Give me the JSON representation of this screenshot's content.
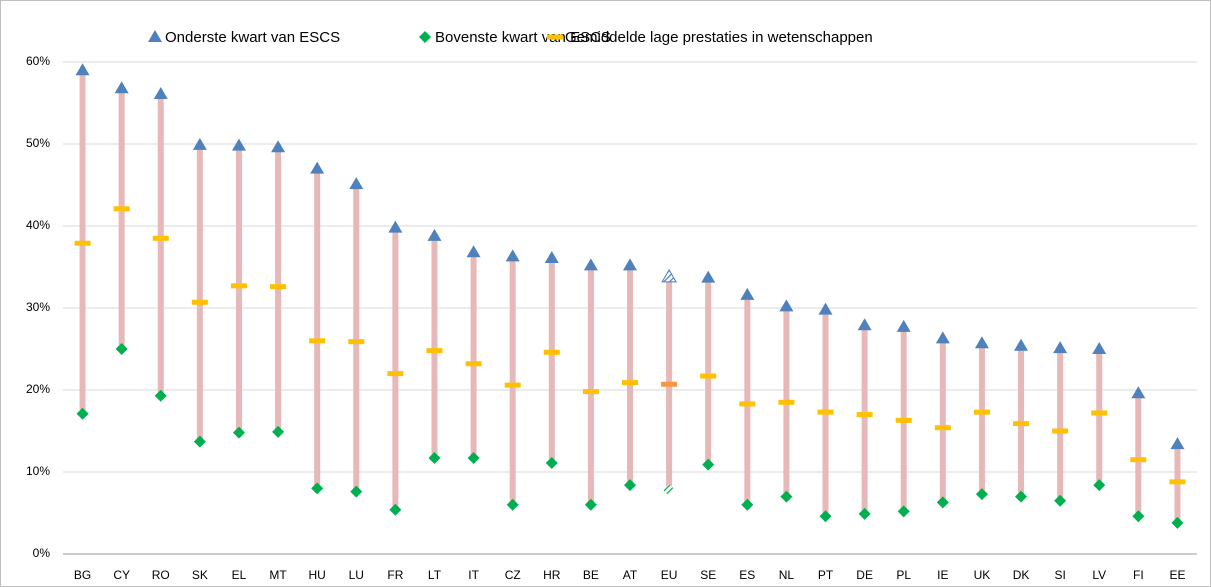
{
  "chart_data": {
    "type": "range",
    "categories": [
      "BG",
      "CY",
      "RO",
      "SK",
      "EL",
      "MT",
      "HU",
      "LU",
      "FR",
      "LT",
      "IT",
      "CZ",
      "HR",
      "BE",
      "AT",
      "EU",
      "SE",
      "ES",
      "NL",
      "PT",
      "DE",
      "PL",
      "IE",
      "UK",
      "DK",
      "SI",
      "LV",
      "FI",
      "EE"
    ],
    "series": [
      {
        "name": "Onderste kwart van ESCS",
        "color": "#4f81bd",
        "marker": "triangle",
        "values": [
          59.0,
          56.8,
          56.1,
          49.9,
          49.8,
          49.6,
          47.0,
          45.1,
          39.8,
          38.8,
          36.8,
          36.3,
          36.1,
          35.2,
          35.2,
          33.8,
          33.7,
          31.6,
          30.2,
          29.8,
          27.9,
          27.7,
          26.3,
          25.7,
          25.4,
          25.1,
          25.0,
          19.6,
          13.4
        ]
      },
      {
        "name": "Bovenste kwart van ESCS",
        "color": "#00b050",
        "marker": "diamond",
        "values": [
          17.1,
          25.0,
          19.3,
          13.7,
          14.8,
          14.9,
          8.0,
          7.6,
          5.4,
          11.7,
          11.7,
          6.0,
          11.1,
          6.0,
          8.4,
          7.8,
          10.9,
          6.0,
          7.0,
          4.6,
          4.9,
          5.2,
          6.3,
          7.3,
          7.0,
          6.5,
          8.4,
          4.6,
          3.8
        ]
      },
      {
        "name": "Gemiddelde lage prestaties in wetenschappen",
        "color": "#ffc000",
        "marker": "dash",
        "values": [
          37.9,
          42.1,
          38.5,
          30.7,
          32.7,
          32.6,
          26.0,
          25.9,
          22.0,
          24.8,
          23.2,
          20.6,
          24.6,
          19.8,
          20.9,
          20.7,
          21.7,
          18.3,
          18.5,
          17.3,
          17.0,
          16.3,
          15.4,
          17.3,
          15.9,
          15.0,
          17.2,
          11.5,
          8.8
        ]
      }
    ],
    "range_color": "#e6b8b7",
    "highlight_categories": [
      "EU"
    ],
    "highlight_color": "#f79646",
    "ylim": [
      0,
      60
    ],
    "yticks": [
      {
        "value": 0,
        "label": "0%"
      },
      {
        "value": 10,
        "label": "10%"
      },
      {
        "value": 20,
        "label": "20%"
      },
      {
        "value": 30,
        "label": "30%"
      },
      {
        "value": 40,
        "label": "40%"
      },
      {
        "value": 50,
        "label": "50%"
      },
      {
        "value": 60,
        "label": "60%"
      }
    ],
    "grid": true,
    "legend": "top"
  }
}
